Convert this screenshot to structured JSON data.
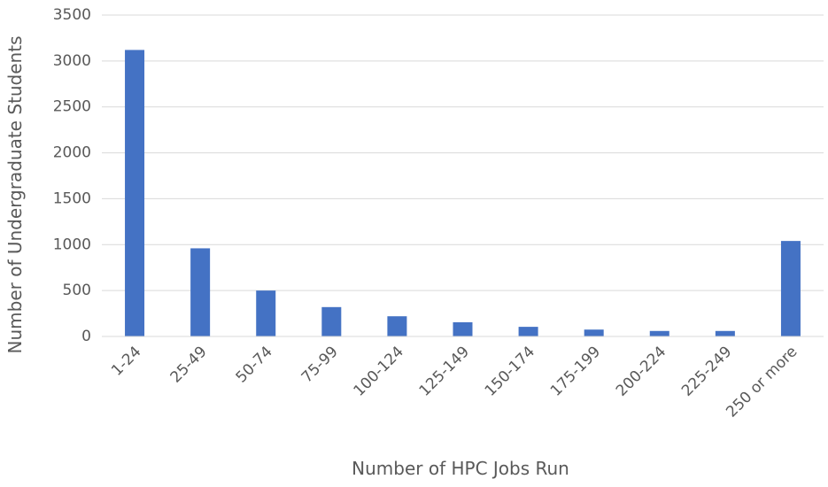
{
  "chart_data": {
    "type": "bar",
    "x_label": "Number of HPC Jobs Run",
    "y_label": "Number  of Undergraduate Students",
    "categories": [
      "1-24",
      "25-49",
      "50-74",
      "75-99",
      "100-124",
      "125-149",
      "150-174",
      "175-199",
      "200-224",
      "225-249",
      "250 or more"
    ],
    "values": [
      3120,
      960,
      500,
      320,
      220,
      155,
      105,
      75,
      60,
      60,
      1040
    ],
    "color": "#4472c4",
    "ylim": [
      0,
      3500
    ],
    "yticks": [
      0,
      500,
      1000,
      1500,
      2000,
      2500,
      3000,
      3500
    ],
    "grid": true
  }
}
